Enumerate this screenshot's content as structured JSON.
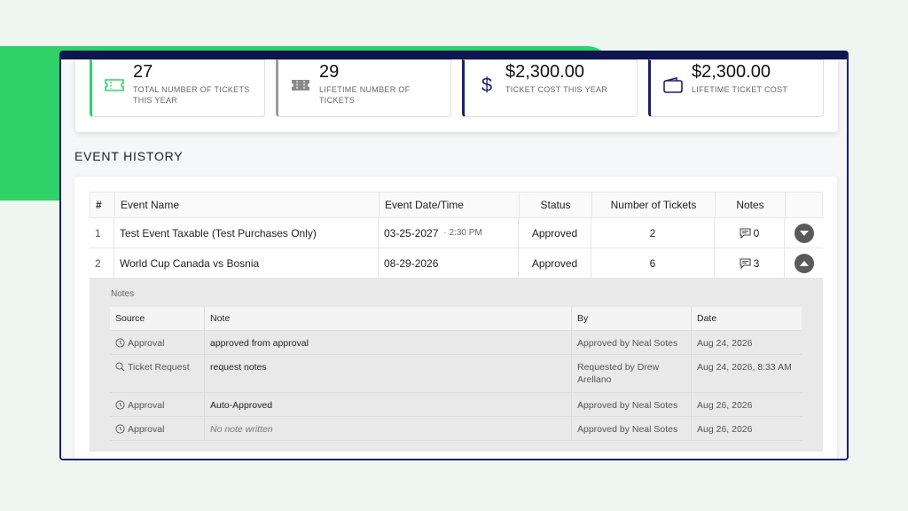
{
  "colors": {
    "accent_green": "#2ed266",
    "navy": "#1b1f6e",
    "gray": "#9a9a9a"
  },
  "stats": [
    {
      "value": "27",
      "label": "TOTAL NUMBER OF TICKETS THIS YEAR",
      "icon": "ticket-icon",
      "color": "#2ed266"
    },
    {
      "value": "29",
      "label": "LIFETIME NUMBER OF TICKETS",
      "icon": "tickets-icon",
      "color": "#9a9a9a"
    },
    {
      "value": "$2,300.00",
      "label": "TICKET COST THIS YEAR",
      "icon": "dollar-icon",
      "color": "#1b1f6e"
    },
    {
      "value": "$2,300.00",
      "label": "LIFETIME TICKET COST",
      "icon": "wallet-icon",
      "color": "#1b1f6e"
    }
  ],
  "section_title": "EVENT HISTORY",
  "events": {
    "headers": [
      "#",
      "Event Name",
      "Event Date/Time",
      "Status",
      "Number of Tickets",
      "Notes"
    ],
    "rows": [
      {
        "num": "1",
        "name": "Test Event Taxable (Test Purchases Only)",
        "date": "03-25-2027",
        "time": "· 2:30 PM",
        "status": "Approved",
        "tickets": "2",
        "notes": "0"
      },
      {
        "num": "2",
        "name": "World Cup Canada vs Bosnia",
        "date": "08-29-2026",
        "time": "",
        "status": "Approved",
        "tickets": "6",
        "notes": "3"
      }
    ]
  },
  "notes": {
    "title": "Notes",
    "headers": [
      "Source",
      "Note",
      "By",
      "Date"
    ],
    "rows": [
      {
        "source": "Approval",
        "icon": "clock-icon",
        "note": "approved from approval",
        "by": "Approved by Neal Sotes",
        "date": "Aug 24, 2026"
      },
      {
        "source": "Ticket Request",
        "icon": "search-icon",
        "note": "request notes",
        "by": "Requested by Drew Arellano",
        "date": "Aug 24, 2026, 8:33 AM"
      },
      {
        "source": "Approval",
        "icon": "clock-icon",
        "note": "Auto-Approved",
        "by": "Approved by Neal Sotes",
        "date": "Aug 26, 2026"
      },
      {
        "source": "Approval",
        "icon": "clock-icon",
        "note": "No note written",
        "by": "Approved by Neal Sotes",
        "date": "Aug 26, 2026"
      }
    ]
  }
}
